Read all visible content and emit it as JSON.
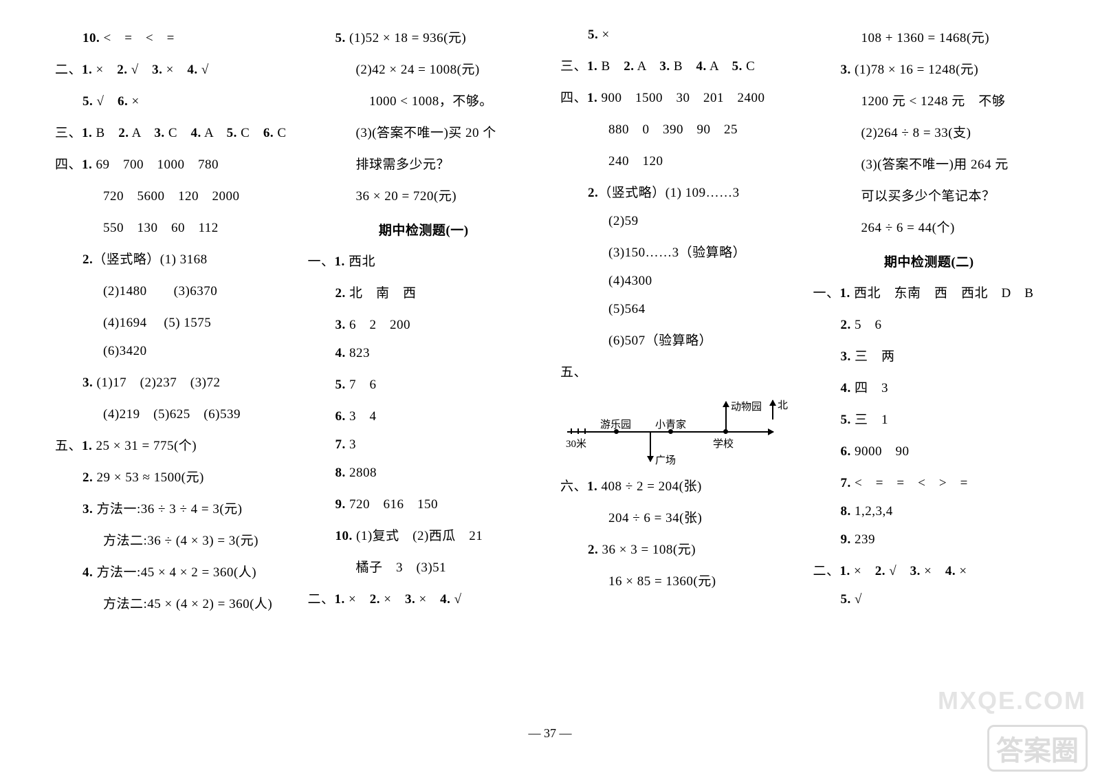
{
  "page_number": "— 37 —",
  "watermark": "MXQE.COM",
  "stamp": "答案圈",
  "col1": [
    {
      "cls": "indent1",
      "t": "<b>10.</b> <　=　<　="
    },
    {
      "cls": "",
      "t": "二、<b>1.</b> ×　<b>2.</b> √　<b>3.</b> ×　<b>4.</b> √"
    },
    {
      "cls": "indent1",
      "t": "<b>5.</b> √　<b>6.</b> ×"
    },
    {
      "cls": "",
      "t": "三、<b>1.</b> B　<b>2.</b> A　<b>3.</b> C　<b>4.</b> A　<b>5.</b> C　<b>6.</b> C"
    },
    {
      "cls": "",
      "t": "四、<b>1.</b> 69　700　1000　780"
    },
    {
      "cls": "indent2",
      "t": "720　5600　120　2000"
    },
    {
      "cls": "indent2",
      "t": "550　130　60　112"
    },
    {
      "cls": "indent1",
      "t": "<b>2.</b>（竖式略）(1) 3168"
    },
    {
      "cls": "indent2",
      "t": "(2)1480　　(3)6370"
    },
    {
      "cls": "indent2",
      "t": "(4)1694　 (5) 1575"
    },
    {
      "cls": "indent2",
      "t": "(6)3420"
    },
    {
      "cls": "indent1",
      "t": "<b>3.</b> (1)17　(2)237　(3)72"
    },
    {
      "cls": "indent2",
      "t": "(4)219　(5)625　(6)539"
    },
    {
      "cls": "",
      "t": "五、<b>1.</b> 25 × 31 = 775(个)"
    },
    {
      "cls": "indent1",
      "t": "<b>2.</b> 29 × 53 ≈ 1500(元)"
    },
    {
      "cls": "indent1",
      "t": "<b>3.</b> 方法一:36 ÷ 3 ÷ 4 = 3(元)"
    },
    {
      "cls": "indent2",
      "t": "方法二:36 ÷ (4 × 3) = 3(元)"
    },
    {
      "cls": "indent1",
      "t": "<b>4.</b> 方法一:45 × 4 × 2 = 360(人)"
    },
    {
      "cls": "indent2",
      "t": "方法二:45 × (4 × 2) = 360(人)"
    }
  ],
  "col2": [
    {
      "cls": "indent1",
      "t": "<b>5.</b> (1)52 × 18 = 936(元)"
    },
    {
      "cls": "indent2",
      "t": "(2)42 × 24 = 1008(元)"
    },
    {
      "cls": "indent2",
      "t": "　1000 < 1008，不够。"
    },
    {
      "cls": "indent2",
      "t": "(3)(答案不唯一)买 20 个"
    },
    {
      "cls": "indent2",
      "t": "排球需多少元？"
    },
    {
      "cls": "indent2",
      "t": "36 × 20 = 720(元)"
    },
    {
      "cls": "heading",
      "t": "期中检测题(一)"
    },
    {
      "cls": "",
      "t": "一、<b>1.</b> 西北"
    },
    {
      "cls": "indent1",
      "t": "<b>2.</b> 北　南　西"
    },
    {
      "cls": "indent1",
      "t": "<b>3.</b> 6　2　200"
    },
    {
      "cls": "indent1",
      "t": "<b>4.</b> 823"
    },
    {
      "cls": "indent1",
      "t": "<b>5.</b> 7　6"
    },
    {
      "cls": "indent1",
      "t": "<b>6.</b> 3　4"
    },
    {
      "cls": "indent1",
      "t": "<b>7.</b> 3"
    },
    {
      "cls": "indent1",
      "t": "<b>8.</b> 2808"
    },
    {
      "cls": "indent1",
      "t": "<b>9.</b> 720　616　150"
    },
    {
      "cls": "indent1",
      "t": "<b>10.</b> (1)复式　(2)西瓜　21"
    },
    {
      "cls": "indent2",
      "t": "橘子　3　(3)51"
    },
    {
      "cls": "",
      "t": "二、<b>1.</b> ×　<b>2.</b> ×　<b>3.</b> ×　<b>4.</b> √"
    }
  ],
  "col3_top": [
    {
      "cls": "indent1",
      "t": "<b>5.</b> ×"
    },
    {
      "cls": "",
      "t": "三、<b>1.</b> B　<b>2.</b> A　<b>3.</b> B　<b>4.</b> A　<b>5.</b> C"
    },
    {
      "cls": "",
      "t": "四、<b>1.</b> 900　1500　30　201　2400"
    },
    {
      "cls": "indent2",
      "t": "880　0　390　90　25"
    },
    {
      "cls": "indent2",
      "t": "240　120"
    },
    {
      "cls": "indent1",
      "t": "<b>2.</b>（竖式略）(1) 109……3"
    },
    {
      "cls": "indent2",
      "t": "(2)59"
    },
    {
      "cls": "indent2",
      "t": "(3)150……3（验算略）"
    },
    {
      "cls": "indent2",
      "t": "(4)4300"
    },
    {
      "cls": "indent2",
      "t": "(5)564"
    },
    {
      "cls": "indent2",
      "t": "(6)507（验算略）"
    },
    {
      "cls": "",
      "t": "五、"
    }
  ],
  "diagram": {
    "labels": {
      "zoo": "动物园",
      "north": "北",
      "playground": "游乐园",
      "home": "小青家",
      "school": "学校",
      "scale": "30米",
      "square": "广场"
    },
    "colors": {
      "line": "#000000"
    }
  },
  "col3_bottom": [
    {
      "cls": "",
      "t": "六、<b>1.</b> 408 ÷ 2 = 204(张)"
    },
    {
      "cls": "indent2",
      "t": "204 ÷ 6 = 34(张)"
    },
    {
      "cls": "indent1",
      "t": "<b>2.</b> 36 × 3 = 108(元)"
    },
    {
      "cls": "indent2",
      "t": "16 × 85 = 1360(元)"
    }
  ],
  "col4": [
    {
      "cls": "indent2",
      "t": "108 + 1360 = 1468(元)"
    },
    {
      "cls": "indent1",
      "t": "<b>3.</b> (1)78 × 16 = 1248(元)"
    },
    {
      "cls": "indent2",
      "t": "1200 元 < 1248 元　不够"
    },
    {
      "cls": "indent2",
      "t": "(2)264 ÷ 8 = 33(支)"
    },
    {
      "cls": "indent2",
      "t": "(3)(答案不唯一)用 264 元"
    },
    {
      "cls": "indent2",
      "t": "可以买多少个笔记本？"
    },
    {
      "cls": "indent2",
      "t": "264 ÷ 6 = 44(个)"
    },
    {
      "cls": "heading",
      "t": "期中检测题(二)"
    },
    {
      "cls": "",
      "t": "一、<b>1.</b> 西北　东南　西　西北　D　B"
    },
    {
      "cls": "indent1",
      "t": "<b>2.</b> 5　6"
    },
    {
      "cls": "indent1",
      "t": "<b>3.</b> 三　两"
    },
    {
      "cls": "indent1",
      "t": "<b>4.</b> 四　3"
    },
    {
      "cls": "indent1",
      "t": "<b>5.</b> 三　1"
    },
    {
      "cls": "indent1",
      "t": "<b>6.</b> 9000　90"
    },
    {
      "cls": "indent1",
      "t": "<b>7.</b> <　=　=　<　>　="
    },
    {
      "cls": "indent1",
      "t": "<b>8.</b> 1,2,3,4"
    },
    {
      "cls": "indent1",
      "t": "<b>9.</b> 239"
    },
    {
      "cls": "",
      "t": "二、<b>1.</b> ×　<b>2.</b> √　<b>3.</b> ×　<b>4.</b> ×"
    },
    {
      "cls": "indent1",
      "t": "<b>5.</b> √"
    }
  ]
}
